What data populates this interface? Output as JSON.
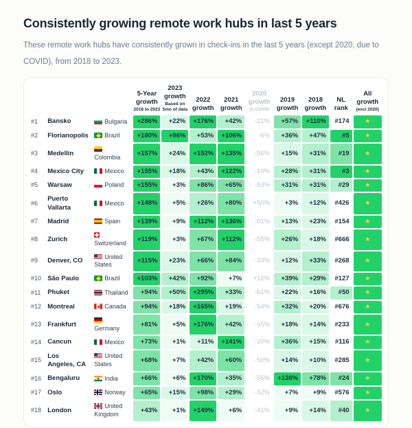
{
  "page": {
    "title": "Consistently growing remote work hubs in last 5 years",
    "subtitle": "These remote work hubs have consistently grown in check-ins in the last 5 years (except 2020, due to COVID), from 2018 to 2023."
  },
  "colors": {
    "accent_green": "#23d169",
    "star_yellow": "#ffd94f",
    "muted_text": "#bcc3cb"
  },
  "chart_data": {
    "type": "table",
    "title": "Consistently growing remote work hubs in last 5 years",
    "star_icon": "★",
    "tone_colors": {
      "5": "#23d169",
      "4": "#7de3a6",
      "3": "#b3f0cd",
      "2": "#d9f8e7",
      "1": "#eefcf5"
    },
    "columns": [
      {
        "key": "growth-5-year",
        "label": "5-Year growth",
        "sub": "2018 to 2023"
      },
      {
        "key": "growth-2023",
        "label": "2023 growth",
        "sub": "Based on 5mo of data"
      },
      {
        "key": "growth-2022",
        "label": "2022 growth"
      },
      {
        "key": "growth-2021",
        "label": "2021 growth"
      },
      {
        "key": "growth-2020",
        "label": "2020 growth",
        "sub": "(!) COVID",
        "muted": true
      },
      {
        "key": "growth-2019",
        "label": "2019 growth"
      },
      {
        "key": "growth-2018",
        "label": "2018 growth"
      },
      {
        "key": "nl-rank",
        "label": "NL rank"
      },
      {
        "key": "all-growth",
        "label": "All growth",
        "sub": "(excl 2020)"
      }
    ],
    "rows": [
      {
        "rank": "#1",
        "city": "Bansko",
        "country": "Bulgaria",
        "flag": "bg",
        "growth": [
          {
            "v": "+286%",
            "t": 5
          },
          {
            "v": "+22%",
            "t": 2
          },
          {
            "v": "+176%",
            "t": 5
          },
          {
            "v": "+42%",
            "t": 3
          },
          {
            "v": "-21%",
            "t": 0
          },
          {
            "v": "+57%",
            "t": 4
          },
          {
            "v": "+110%",
            "t": 5
          }
        ],
        "nl": {
          "v": "#174",
          "t": 0
        }
      },
      {
        "rank": "#2",
        "city": "Florianopolis",
        "country": "Brazil",
        "flag": "br",
        "growth": [
          {
            "v": "+180%",
            "t": 5
          },
          {
            "v": "+96%",
            "t": 5
          },
          {
            "v": "+53%",
            "t": 3
          },
          {
            "v": "+106%",
            "t": 5
          },
          {
            "v": "-6%",
            "t": 0
          },
          {
            "v": "+36%",
            "t": 3
          },
          {
            "v": "+47%",
            "t": 3
          }
        ],
        "nl": {
          "v": "#5",
          "t": 5
        }
      },
      {
        "rank": "#3",
        "city": "Medellín",
        "country": "Colombia",
        "flag": "co",
        "growth": [
          {
            "v": "+157%",
            "t": 5
          },
          {
            "v": "+24%",
            "t": 2
          },
          {
            "v": "+152%",
            "t": 5
          },
          {
            "v": "+135%",
            "t": 5
          },
          {
            "v": "-56%",
            "t": 0
          },
          {
            "v": "+15%",
            "t": 2
          },
          {
            "v": "+31%",
            "t": 3
          }
        ],
        "nl": {
          "v": "#19",
          "t": 4
        }
      },
      {
        "rank": "#4",
        "city": "Mexico City",
        "country": "Mexico",
        "flag": "mx",
        "growth": [
          {
            "v": "+155%",
            "t": 5
          },
          {
            "v": "+18%",
            "t": 2
          },
          {
            "v": "+43%",
            "t": 3
          },
          {
            "v": "+122%",
            "t": 5
          },
          {
            "v": "-10%",
            "t": 0
          },
          {
            "v": "+28%",
            "t": 3
          },
          {
            "v": "+31%",
            "t": 3
          }
        ],
        "nl": {
          "v": "#3",
          "t": 5
        }
      },
      {
        "rank": "#5",
        "city": "Warsaw",
        "country": "Poland",
        "flag": "pl",
        "growth": [
          {
            "v": "+155%",
            "t": 5
          },
          {
            "v": "+3%",
            "t": 1
          },
          {
            "v": "+86%",
            "t": 4
          },
          {
            "v": "+65%",
            "t": 4
          },
          {
            "v": "-53%",
            "t": 0
          },
          {
            "v": "+31%",
            "t": 3
          },
          {
            "v": "+31%",
            "t": 3
          }
        ],
        "nl": {
          "v": "#29",
          "t": 3
        }
      },
      {
        "rank": "#6",
        "city": "Puerto Vallarta",
        "country": "Mexico",
        "flag": "mx",
        "growth": [
          {
            "v": "+148%",
            "t": 5
          },
          {
            "v": "+5%",
            "t": 1
          },
          {
            "v": "+26%",
            "t": 3
          },
          {
            "v": "+80%",
            "t": 4
          },
          {
            "v": "+50%",
            "t": 0
          },
          {
            "v": "+3%",
            "t": 1
          },
          {
            "v": "+12%",
            "t": 2
          }
        ],
        "nl": {
          "v": "#426",
          "t": 0
        }
      },
      {
        "rank": "#7",
        "city": "Madrid",
        "country": "Spain",
        "flag": "es",
        "growth": [
          {
            "v": "+139%",
            "t": 5
          },
          {
            "v": "+9%",
            "t": 1
          },
          {
            "v": "+112%",
            "t": 5
          },
          {
            "v": "+136%",
            "t": 5
          },
          {
            "v": "-61%",
            "t": 0
          },
          {
            "v": "+13%",
            "t": 2
          },
          {
            "v": "+23%",
            "t": 2
          }
        ],
        "nl": {
          "v": "#154",
          "t": 0
        }
      },
      {
        "rank": "#8",
        "city": "Zurich",
        "country": "Switzerland",
        "flag": "ch",
        "growth": [
          {
            "v": "+119%",
            "t": 5
          },
          {
            "v": "+3%",
            "t": 1
          },
          {
            "v": "+67%",
            "t": 4
          },
          {
            "v": "+112%",
            "t": 5
          },
          {
            "v": "-55%",
            "t": 0
          },
          {
            "v": "+26%",
            "t": 3
          },
          {
            "v": "+18%",
            "t": 2
          }
        ],
        "nl": {
          "v": "#666",
          "t": 0
        }
      },
      {
        "rank": "#9",
        "city": "Denver, CO",
        "country": "United States",
        "flag": "us",
        "growth": [
          {
            "v": "+115%",
            "t": 5
          },
          {
            "v": "+23%",
            "t": 2
          },
          {
            "v": "+66%",
            "t": 4
          },
          {
            "v": "+84%",
            "t": 4
          },
          {
            "v": "-33%",
            "t": 0
          },
          {
            "v": "+12%",
            "t": 2
          },
          {
            "v": "+33%",
            "t": 3
          }
        ],
        "nl": {
          "v": "#268",
          "t": 0
        }
      },
      {
        "rank": "#10",
        "city": "São Paulo",
        "country": "Brazil",
        "flag": "br",
        "growth": [
          {
            "v": "+103%",
            "t": 5
          },
          {
            "v": "+42%",
            "t": 3
          },
          {
            "v": "+92%",
            "t": 4
          },
          {
            "v": "+7%",
            "t": 1
          },
          {
            "v": "+12%",
            "t": 0
          },
          {
            "v": "+39%",
            "t": 3
          },
          {
            "v": "+29%",
            "t": 3
          }
        ],
        "nl": {
          "v": "#127",
          "t": 0
        }
      },
      {
        "rank": "#11",
        "city": "Phuket",
        "country": "Thailand",
        "flag": "th",
        "growth": [
          {
            "v": "+94%",
            "t": 4
          },
          {
            "v": "+50%",
            "t": 3
          },
          {
            "v": "+295%",
            "t": 5
          },
          {
            "v": "+33%",
            "t": 3
          },
          {
            "v": "-61%",
            "t": 0
          },
          {
            "v": "+22%",
            "t": 2
          },
          {
            "v": "+16%",
            "t": 2
          }
        ],
        "nl": {
          "v": "#50",
          "t": 3
        }
      },
      {
        "rank": "#12",
        "city": "Montreal",
        "country": "Canada",
        "flag": "ca",
        "growth": [
          {
            "v": "+94%",
            "t": 4
          },
          {
            "v": "+18%",
            "t": 2
          },
          {
            "v": "+165%",
            "t": 5
          },
          {
            "v": "+19%",
            "t": 2
          },
          {
            "v": "-54%",
            "t": 0
          },
          {
            "v": "+32%",
            "t": 3
          },
          {
            "v": "+20%",
            "t": 2
          }
        ],
        "nl": {
          "v": "#676",
          "t": 0
        }
      },
      {
        "rank": "#13",
        "city": "Frankfurt",
        "country": "Germany",
        "flag": "de",
        "growth": [
          {
            "v": "+81%",
            "t": 4
          },
          {
            "v": "+5%",
            "t": 1
          },
          {
            "v": "+176%",
            "t": 5
          },
          {
            "v": "+42%",
            "t": 3
          },
          {
            "v": "-55%",
            "t": 0
          },
          {
            "v": "+18%",
            "t": 2
          },
          {
            "v": "+14%",
            "t": 2
          }
        ],
        "nl": {
          "v": "#233",
          "t": 0
        }
      },
      {
        "rank": "#14",
        "city": "Cancun",
        "country": "Mexico",
        "flag": "mx",
        "growth": [
          {
            "v": "+73%",
            "t": 4
          },
          {
            "v": "+1%",
            "t": 1
          },
          {
            "v": "+11%",
            "t": 2
          },
          {
            "v": "+141%",
            "t": 5
          },
          {
            "v": "-20%",
            "t": 0
          },
          {
            "v": "+36%",
            "t": 3
          },
          {
            "v": "+15%",
            "t": 2
          }
        ],
        "nl": {
          "v": "#116",
          "t": 0
        }
      },
      {
        "rank": "#15",
        "city": "Los Angeles, CA",
        "country": "United States",
        "flag": "us",
        "growth": [
          {
            "v": "+68%",
            "t": 4
          },
          {
            "v": "+7%",
            "t": 1
          },
          {
            "v": "+42%",
            "t": 3
          },
          {
            "v": "+60%",
            "t": 4
          },
          {
            "v": "-50%",
            "t": 0
          },
          {
            "v": "+14%",
            "t": 2
          },
          {
            "v": "+10%",
            "t": 2
          }
        ],
        "nl": {
          "v": "#285",
          "t": 0
        }
      },
      {
        "rank": "#16",
        "city": "Bengaluru",
        "country": "India",
        "flag": "in",
        "growth": [
          {
            "v": "+66%",
            "t": 4
          },
          {
            "v": "+6%",
            "t": 1
          },
          {
            "v": "+170%",
            "t": 5
          },
          {
            "v": "+35%",
            "t": 3
          },
          {
            "v": "-55%",
            "t": 0
          },
          {
            "v": "+138%",
            "t": 5
          },
          {
            "v": "+78%",
            "t": 4
          }
        ],
        "nl": {
          "v": "#24",
          "t": 4
        }
      },
      {
        "rank": "#17",
        "city": "Oslo",
        "country": "Norway",
        "flag": "no",
        "growth": [
          {
            "v": "+65%",
            "t": 4
          },
          {
            "v": "+15%",
            "t": 2
          },
          {
            "v": "+98%",
            "t": 4
          },
          {
            "v": "+29%",
            "t": 3
          },
          {
            "v": "-52%",
            "t": 0
          },
          {
            "v": "+7%",
            "t": 1
          },
          {
            "v": "+9%",
            "t": 1
          }
        ],
        "nl": {
          "v": "#576",
          "t": 0
        }
      },
      {
        "rank": "#18",
        "city": "London",
        "country": "United Kingdom",
        "flag": "gb",
        "growth": [
          {
            "v": "+43%",
            "t": 3
          },
          {
            "v": "+1%",
            "t": 1
          },
          {
            "v": "+149%",
            "t": 5
          },
          {
            "v": "+6%",
            "t": 1
          },
          {
            "v": "-41%",
            "t": 0
          },
          {
            "v": "+9%",
            "t": 1
          },
          {
            "v": "+14%",
            "t": 2
          }
        ],
        "nl": {
          "v": "#40",
          "t": 3
        }
      }
    ]
  }
}
